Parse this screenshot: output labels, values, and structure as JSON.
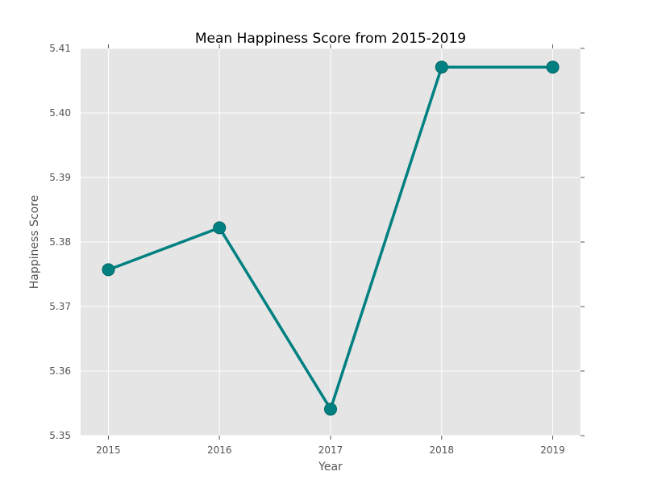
{
  "chart_data": {
    "type": "line",
    "title": "Mean Happiness Score from 2015-2019",
    "xlabel": "Year",
    "ylabel": "Happiness Score",
    "categories": [
      "2015",
      "2016",
      "2017",
      "2018",
      "2019"
    ],
    "x": [
      2015,
      2016,
      2017,
      2018,
      2019
    ],
    "series": [
      {
        "values": [
          5.3757,
          5.3822,
          5.3541,
          5.4071,
          5.4071
        ]
      }
    ],
    "ylim": [
      5.35,
      5.41
    ],
    "xlim": [
      2014.75,
      2019.25
    ],
    "yticks": [
      "5.35",
      "5.36",
      "5.37",
      "5.38",
      "5.39",
      "5.40",
      "5.41"
    ],
    "grid": true,
    "colors": {
      "line": "#008080",
      "plot_background": "#e5e5e5",
      "grid": "#ffffff"
    }
  }
}
